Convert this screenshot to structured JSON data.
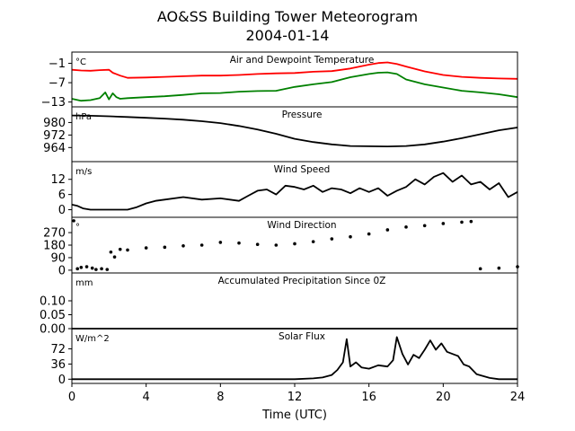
{
  "figure": {
    "title_line1": "AO&SS Building Tower Meteorogram",
    "title_line2": "2004-01-14",
    "xlabel": "Time (UTC)"
  },
  "chart_data": [
    {
      "id": "temperature",
      "type": "line",
      "title": "Air and Dewpoint Temperature",
      "unit": "°C",
      "ylim": [
        -14.5,
        2.5
      ],
      "yticks": [
        -13,
        -7,
        -1
      ],
      "ytick_labels": [
        "−13",
        "−7",
        "−1"
      ],
      "xlim": [
        0,
        24
      ],
      "grid": false,
      "legend": "none",
      "series": [
        {
          "color": "#ff0000",
          "x": [
            0,
            0.5,
            1,
            1.5,
            2,
            2.2,
            2.6,
            3,
            4,
            5,
            6,
            7,
            8,
            9,
            10,
            11,
            12,
            13,
            14,
            15,
            16,
            16.5,
            17,
            17.5,
            18,
            19,
            20,
            21,
            22,
            23,
            24
          ],
          "y": [
            -3.0,
            -3.2,
            -3.3,
            -3.1,
            -3.0,
            -3.9,
            -4.8,
            -5.5,
            -5.4,
            -5.2,
            -5.0,
            -4.8,
            -4.8,
            -4.6,
            -4.3,
            -4.1,
            -4.0,
            -3.6,
            -3.4,
            -2.6,
            -1.4,
            -0.9,
            -0.7,
            -1.2,
            -2.0,
            -3.5,
            -4.6,
            -5.2,
            -5.5,
            -5.7,
            -5.8
          ]
        },
        {
          "color": "#008000",
          "x": [
            0,
            0.5,
            1,
            1.5,
            1.8,
            2.0,
            2.2,
            2.4,
            2.6,
            3,
            4,
            5,
            6,
            7,
            8,
            9,
            10,
            11,
            12,
            13,
            14,
            15,
            16,
            16.5,
            17,
            17.5,
            18,
            19,
            20,
            21,
            22,
            23,
            24
          ],
          "y": [
            -12.0,
            -12.6,
            -12.4,
            -11.8,
            -10.0,
            -12.2,
            -10.3,
            -11.5,
            -12.0,
            -11.8,
            -11.5,
            -11.2,
            -10.8,
            -10.3,
            -10.2,
            -9.8,
            -9.6,
            -9.5,
            -8.3,
            -7.5,
            -6.8,
            -5.3,
            -4.3,
            -3.9,
            -3.8,
            -4.3,
            -6.0,
            -7.5,
            -8.5,
            -9.5,
            -10.0,
            -10.6,
            -11.5
          ]
        }
      ]
    },
    {
      "id": "pressure",
      "type": "line",
      "title": "Pressure",
      "unit": "hPa",
      "ylim": [
        955,
        990
      ],
      "yticks": [
        964,
        972,
        980
      ],
      "ytick_labels": [
        "964",
        "972",
        "980"
      ],
      "xlim": [
        0,
        24
      ],
      "grid": false,
      "legend": "none",
      "series": [
        {
          "color": "#000000",
          "x": [
            0,
            1,
            2,
            3,
            4,
            5,
            6,
            7,
            8,
            9,
            10,
            11,
            12,
            13,
            14,
            15,
            16,
            17,
            18,
            19,
            20,
            21,
            22,
            23,
            24
          ],
          "y": [
            984.5,
            984.3,
            984.0,
            983.5,
            983.0,
            982.5,
            981.8,
            980.8,
            979.6,
            977.8,
            975.5,
            972.8,
            969.6,
            967.5,
            966.0,
            965.0,
            964.8,
            964.7,
            965.0,
            966.0,
            967.8,
            970.0,
            972.5,
            975.0,
            976.8
          ]
        }
      ]
    },
    {
      "id": "wind_speed",
      "type": "line",
      "title": "Wind Speed",
      "unit": "m/s",
      "ylim": [
        -3,
        19
      ],
      "yticks": [
        0,
        6,
        12
      ],
      "ytick_labels": [
        "0",
        "6",
        "12"
      ],
      "xlim": [
        0,
        24
      ],
      "grid": false,
      "legend": "none",
      "series": [
        {
          "color": "#000000",
          "x": [
            0,
            0.3,
            0.6,
            1,
            2,
            3,
            3.5,
            4,
            4.5,
            5,
            6,
            7,
            8,
            9,
            9.5,
            10,
            10.5,
            11,
            11.5,
            12,
            12.5,
            13,
            13.5,
            14,
            14.5,
            15,
            15.5,
            16,
            16.5,
            17,
            17.5,
            18,
            18.5,
            19,
            19.5,
            20,
            20.5,
            21,
            21.5,
            22,
            22.5,
            23,
            23.5,
            24
          ],
          "y": [
            2.0,
            1.5,
            0.5,
            0.0,
            0.0,
            0.0,
            1.0,
            2.5,
            3.5,
            4.0,
            5.0,
            4.0,
            4.5,
            3.5,
            5.5,
            7.5,
            8.0,
            6.0,
            9.5,
            9.0,
            8.0,
            9.5,
            7.0,
            8.5,
            8.0,
            6.5,
            8.5,
            7.0,
            8.5,
            5.5,
            7.5,
            9.0,
            12.0,
            10.0,
            13.0,
            14.5,
            11.0,
            13.5,
            10.0,
            11.0,
            8.0,
            10.5,
            5.0,
            7.0
          ]
        }
      ]
    },
    {
      "id": "wind_direction",
      "type": "scatter",
      "title": "Wind Direction",
      "unit": "°",
      "ylim": [
        -20,
        380
      ],
      "yticks": [
        0,
        90,
        180,
        270
      ],
      "ytick_labels": [
        "0",
        "90",
        "180",
        "270"
      ],
      "xlim": [
        0,
        24
      ],
      "grid": false,
      "legend": "none",
      "series": [
        {
          "color": "#000000",
          "x": [
            0.1,
            0.3,
            0.5,
            0.8,
            1.1,
            1.3,
            1.6,
            1.9,
            2.1,
            2.3,
            2.6,
            3,
            4,
            5,
            6,
            7,
            8,
            9,
            10,
            11,
            12,
            13,
            14,
            15,
            16,
            17,
            18,
            19,
            20,
            21,
            21.5,
            22,
            23,
            24
          ],
          "y": [
            355,
            10,
            20,
            25,
            15,
            5,
            10,
            5,
            130,
            95,
            150,
            145,
            160,
            165,
            175,
            180,
            200,
            195,
            185,
            180,
            190,
            205,
            225,
            240,
            260,
            290,
            310,
            320,
            335,
            345,
            350,
            10,
            15,
            25
          ]
        }
      ]
    },
    {
      "id": "precipitation",
      "type": "line",
      "title": "Accumulated Precipitation Since 0Z",
      "unit": "mm",
      "ylim": [
        0,
        0.2
      ],
      "yticks": [
        0.0,
        0.05,
        0.1
      ],
      "ytick_labels": [
        "0.00",
        "0.05",
        "0.10"
      ],
      "xlim": [
        0,
        24
      ],
      "grid": false,
      "legend": "none",
      "series": [
        {
          "color": "#000000",
          "x": [
            0,
            24
          ],
          "y": [
            0.0,
            0.0
          ]
        }
      ]
    },
    {
      "id": "solar_flux",
      "type": "line",
      "title": "Solar Flux",
      "unit": "W/m^2",
      "ylim": [
        -10,
        120
      ],
      "yticks": [
        0,
        36,
        72
      ],
      "ytick_labels": [
        "0",
        "36",
        "72"
      ],
      "xlim": [
        0,
        24
      ],
      "grid": false,
      "legend": "none",
      "series": [
        {
          "color": "#000000",
          "x": [
            0,
            12,
            13,
            13.5,
            14,
            14.3,
            14.6,
            14.8,
            15.0,
            15.3,
            15.6,
            16,
            16.5,
            17,
            17.3,
            17.5,
            17.8,
            18.1,
            18.4,
            18.7,
            19.0,
            19.3,
            19.6,
            19.9,
            20.2,
            20.5,
            20.8,
            21.1,
            21.4,
            21.8,
            22.5,
            23,
            24
          ],
          "y": [
            0,
            0,
            2,
            4,
            10,
            22,
            40,
            95,
            30,
            40,
            28,
            25,
            33,
            30,
            45,
            100,
            60,
            35,
            58,
            50,
            70,
            92,
            70,
            85,
            65,
            60,
            55,
            35,
            30,
            12,
            3,
            0,
            0
          ]
        }
      ]
    }
  ]
}
